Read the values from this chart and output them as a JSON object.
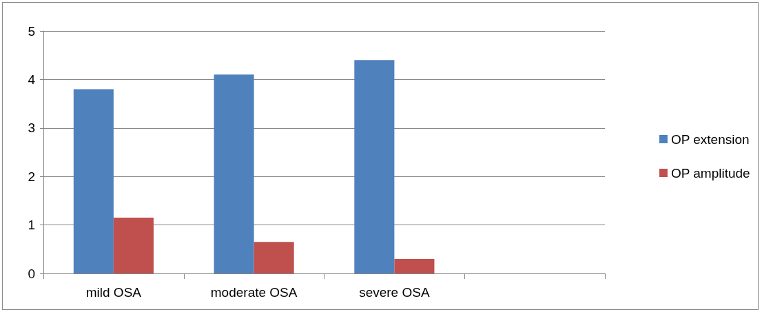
{
  "chart_data": {
    "type": "bar",
    "categories": [
      "mild OSA",
      "moderate OSA",
      "severe OSA",
      null
    ],
    "series": [
      {
        "name": "OP extension",
        "color": "#4f81bd",
        "values": [
          3.8,
          4.1,
          4.4,
          null
        ]
      },
      {
        "name": "OP amplitude",
        "color": "#c0504d",
        "values": [
          1.15,
          0.65,
          0.3,
          null
        ]
      }
    ],
    "ylim": [
      0,
      5
    ],
    "yticks": [
      0,
      1,
      2,
      3,
      4,
      5
    ],
    "grid": "y",
    "legend": "right"
  }
}
